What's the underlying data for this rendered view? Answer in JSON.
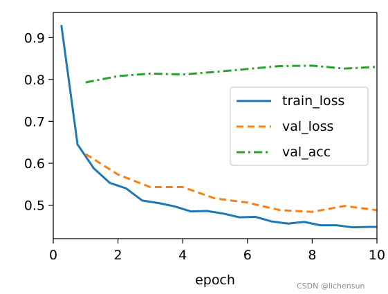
{
  "chart_data": {
    "type": "line",
    "xlabel": "epoch",
    "ylabel": "",
    "xlim": [
      0,
      10
    ],
    "ylim": [
      0.42,
      0.96
    ],
    "xticks": [
      0,
      2,
      4,
      6,
      8,
      10
    ],
    "xtick_labels": [
      "0",
      "2",
      "4",
      "6",
      "8",
      "10"
    ],
    "yticks": [
      0.5,
      0.6,
      0.7,
      0.8,
      0.9
    ],
    "ytick_labels": [
      "0.5",
      "0.6",
      "0.7",
      "0.8",
      "0.9"
    ],
    "grid": false,
    "legend_position": "right",
    "series": [
      {
        "name": "train_loss",
        "color": "#1f77b4",
        "style": "solid",
        "x": [
          0.25,
          0.75,
          1.25,
          1.75,
          2.25,
          2.75,
          3.25,
          3.75,
          4.25,
          4.75,
          5.25,
          5.75,
          6.25,
          6.75,
          7.25,
          7.75,
          8.25,
          8.75,
          9.25,
          9.75,
          10.0
        ],
        "values": [
          0.93,
          0.645,
          0.588,
          0.553,
          0.54,
          0.511,
          0.505,
          0.497,
          0.485,
          0.486,
          0.48,
          0.471,
          0.472,
          0.461,
          0.456,
          0.46,
          0.452,
          0.452,
          0.447,
          0.448,
          0.448
        ]
      },
      {
        "name": "val_loss",
        "color": "#ff7f0e",
        "style": "dashed",
        "x": [
          1,
          2,
          3,
          4,
          5,
          6,
          7,
          8,
          9,
          10
        ],
        "values": [
          0.622,
          0.573,
          0.543,
          0.543,
          0.516,
          0.506,
          0.488,
          0.484,
          0.498,
          0.488
        ]
      },
      {
        "name": "val_acc",
        "color": "#2ca02c",
        "style": "dashdot",
        "x": [
          1,
          2,
          3,
          4,
          5,
          6,
          7,
          8,
          9,
          10
        ],
        "values": [
          0.793,
          0.808,
          0.814,
          0.812,
          0.818,
          0.825,
          0.832,
          0.833,
          0.826,
          0.83
        ]
      }
    ]
  },
  "watermark": "CSDN @lichensun"
}
